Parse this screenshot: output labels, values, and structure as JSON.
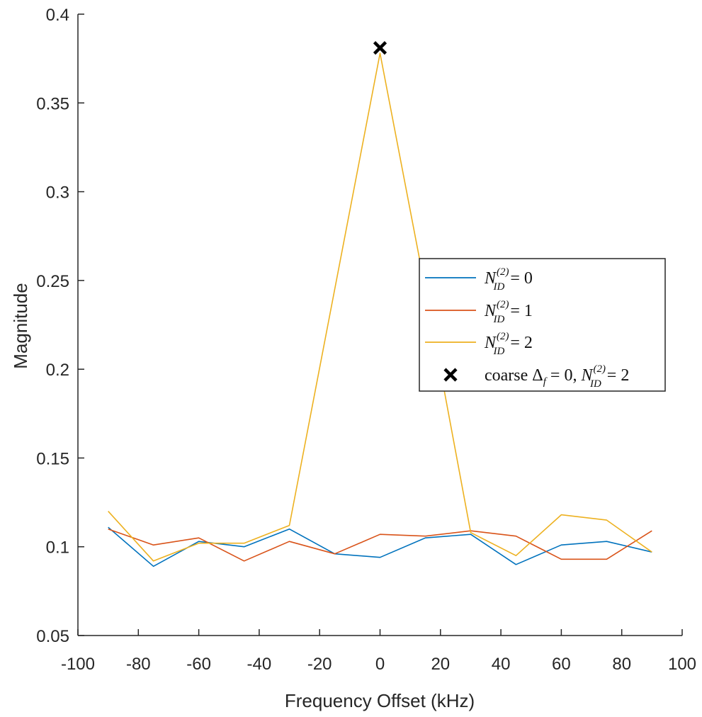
{
  "chart_data": {
    "type": "line",
    "xlabel": "Frequency Offset (kHz)",
    "ylabel": "Magnitude",
    "xlim": [
      -100,
      100
    ],
    "ylim": [
      0.05,
      0.4
    ],
    "xticks": [
      -100,
      -80,
      -60,
      -40,
      -20,
      0,
      20,
      40,
      60,
      80,
      100
    ],
    "yticks": [
      0.05,
      0.1,
      0.15,
      0.2,
      0.25,
      0.3,
      0.35,
      0.4
    ],
    "xtick_labels": [
      "-100",
      "-80",
      "-60",
      "-40",
      "-20",
      "0",
      "20",
      "40",
      "60",
      "80",
      "100"
    ],
    "ytick_labels": [
      "0.05",
      "0.1",
      "0.15",
      "0.2",
      "0.25",
      "0.3",
      "0.35",
      "0.4"
    ],
    "grid": false,
    "legend_position": "right",
    "x": [
      -90,
      -75,
      -60,
      -45,
      -30,
      -15,
      0,
      15,
      30,
      45,
      60,
      75,
      90
    ],
    "series": [
      {
        "name": "N_ID^(2) = 0",
        "legend_value": "0",
        "color": "#0072BD",
        "values": [
          0.111,
          0.089,
          0.103,
          0.1,
          0.11,
          0.096,
          0.094,
          0.105,
          0.107,
          0.09,
          0.101,
          0.103,
          0.097
        ]
      },
      {
        "name": "N_ID^(2) = 1",
        "legend_value": "1",
        "color": "#D95319",
        "values": [
          0.11,
          0.101,
          0.105,
          0.092,
          0.103,
          0.096,
          0.107,
          0.106,
          0.109,
          0.106,
          0.093,
          0.093,
          0.109
        ]
      },
      {
        "name": "N_ID^(2) = 2",
        "legend_value": "2",
        "color": "#EDB120",
        "values": [
          0.12,
          0.092,
          0.102,
          0.102,
          0.112,
          0.245,
          0.378,
          0.245,
          0.108,
          0.095,
          0.118,
          0.115,
          0.097
        ]
      }
    ],
    "marker": {
      "label": "coarse Δf = 0, N_ID^(2) = 2",
      "x": 0,
      "y": 0.381,
      "symbol": "x",
      "color": "#000000"
    },
    "legend_marker_text": {
      "prefix": "coarse Δ",
      "sub": "f",
      "mid": " = 0, ",
      "value": "2"
    }
  }
}
